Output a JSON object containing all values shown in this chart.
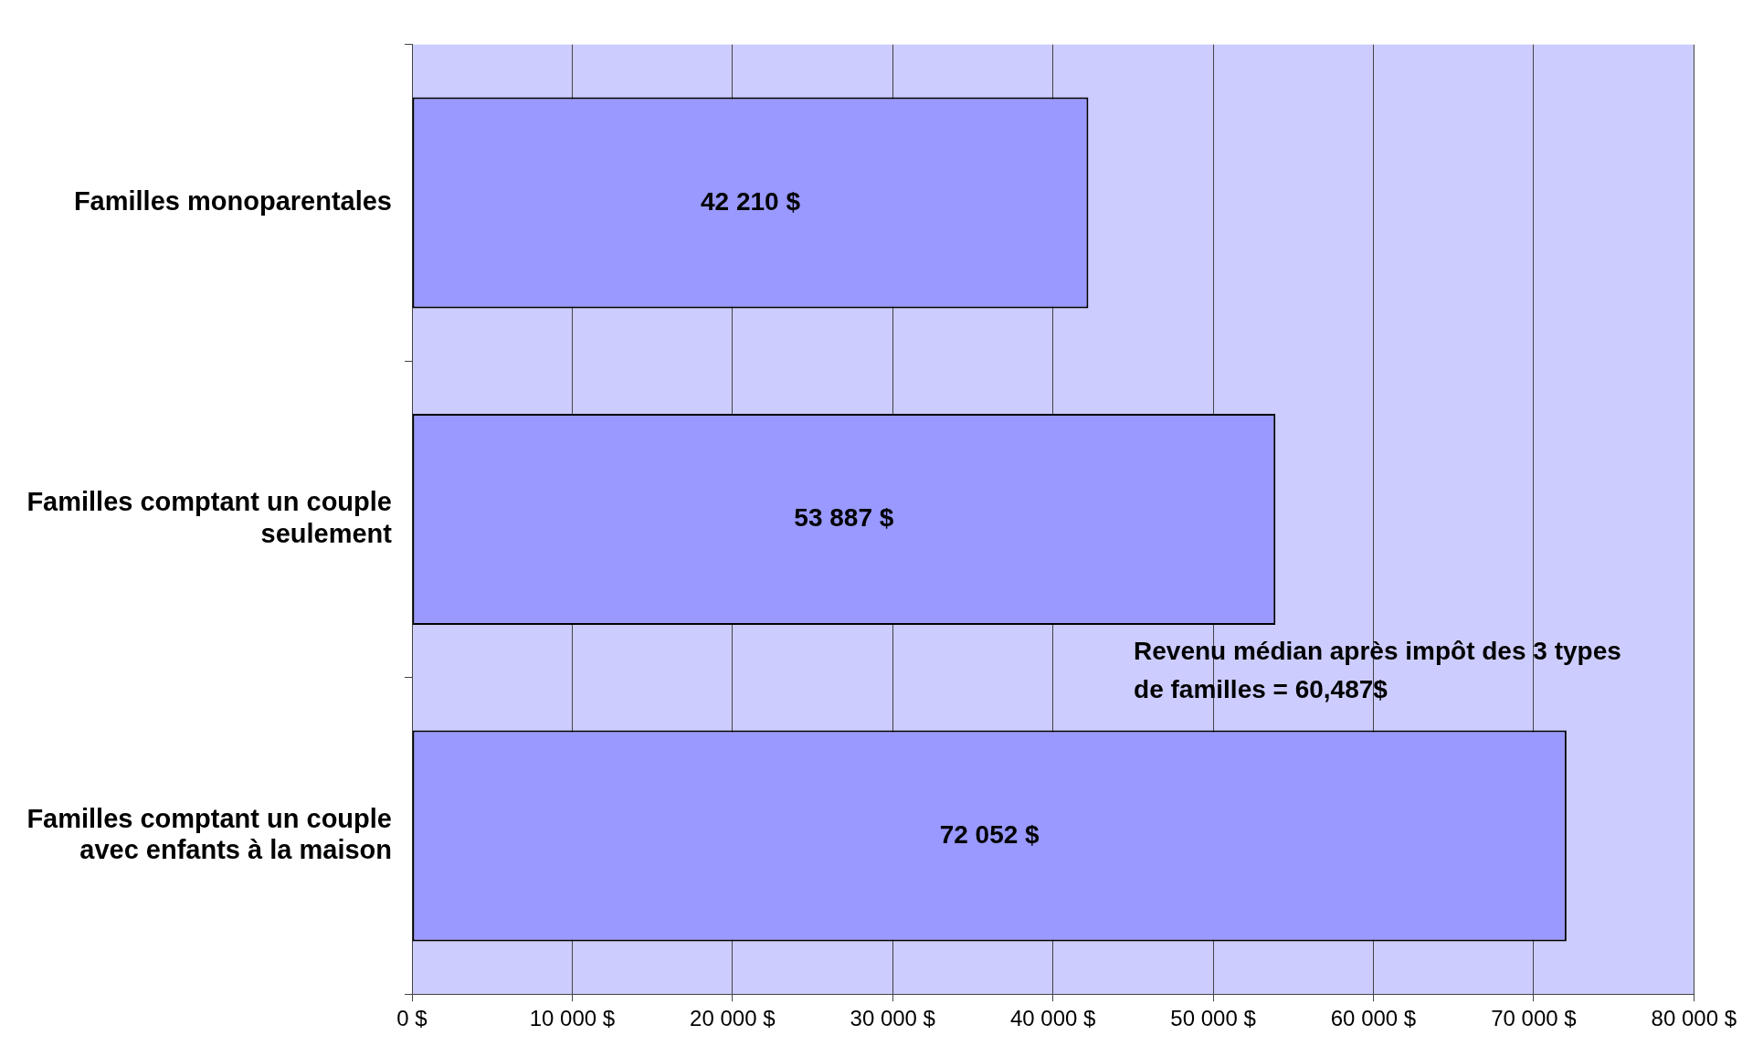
{
  "chart_data": {
    "type": "bar",
    "orientation": "horizontal",
    "categories": [
      "Familles monoparentales",
      "Familles comptant un couple seulement",
      "Familles comptant un couple avec enfants à la maison"
    ],
    "values": [
      42210,
      53887,
      72052
    ],
    "value_labels": [
      "42 210 $",
      "53 887 $",
      "72 052 $"
    ],
    "color": "#9999ff",
    "xlim": [
      0,
      80000
    ],
    "xticks": [
      {
        "value": 0,
        "label": "0 $"
      },
      {
        "value": 10000,
        "label": "10 000 $"
      },
      {
        "value": 20000,
        "label": "20 000 $"
      },
      {
        "value": 30000,
        "label": "30 000 $"
      },
      {
        "value": 40000,
        "label": "40 000 $"
      },
      {
        "value": 50000,
        "label": "50 000 $"
      },
      {
        "value": 60000,
        "label": "60 000 $"
      },
      {
        "value": 70000,
        "label": "70 000 $"
      },
      {
        "value": 80000,
        "label": "80 000 $"
      }
    ],
    "grid": "x",
    "legend": false,
    "annotations": [
      "Revenu médian après impôt des 3 types de familles = 60,487$"
    ]
  }
}
